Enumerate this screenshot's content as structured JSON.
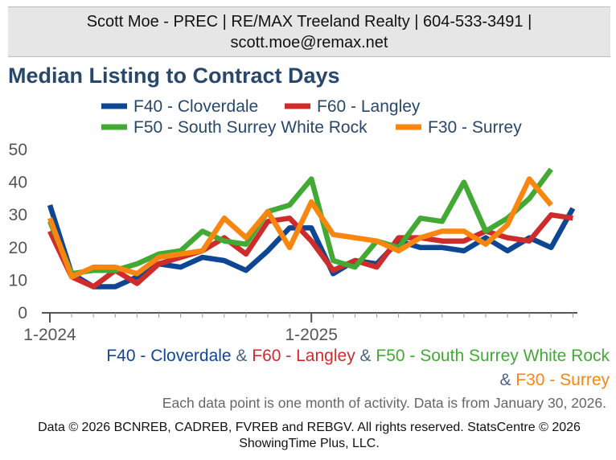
{
  "header": {
    "contact": "Scott Moe - PREC | RE/MAX Treeland Realty | 604-533-3491 | scott.moe@remax.net"
  },
  "chart_data": {
    "type": "line",
    "title": "Median Listing to Contract Days",
    "x_tick_labels": [
      "1-2024",
      "1-2025"
    ],
    "x_tick_positions": [
      0,
      12
    ],
    "ylim": [
      0,
      50
    ],
    "yticks": [
      0,
      10,
      20,
      30,
      40,
      50
    ],
    "grid": false,
    "legend_position": "top",
    "x": [
      0,
      1,
      2,
      3,
      4,
      5,
      6,
      7,
      8,
      9,
      10,
      11,
      12,
      13,
      14,
      15,
      16,
      17,
      18,
      19,
      20,
      21,
      22,
      23,
      24
    ],
    "series": [
      {
        "name": "F40 - Cloverdale",
        "color": "#0d4794",
        "values": [
          33,
          12,
          8,
          8,
          11,
          15,
          14,
          17,
          16,
          13,
          19,
          26,
          26,
          12,
          16,
          15,
          22,
          20,
          20,
          19,
          23,
          19,
          23,
          20,
          32
        ]
      },
      {
        "name": "F60 - Langley",
        "color": "#cf2b2b",
        "values": [
          25,
          11,
          8,
          13,
          9,
          15,
          17,
          19,
          23,
          18,
          28,
          29,
          22,
          13,
          16,
          14,
          23,
          23,
          22,
          22,
          25,
          23,
          22,
          30,
          29
        ]
      },
      {
        "name": "F50 - South Surrey White Rock",
        "color": "#43a935",
        "values": [
          28,
          12,
          13,
          13,
          15,
          18,
          19,
          25,
          22,
          21,
          31,
          33,
          41,
          16,
          14,
          22,
          20,
          29,
          28,
          40,
          25,
          29,
          35,
          44,
          null
        ]
      },
      {
        "name": "F30 - Surrey",
        "color": "#fb860f",
        "values": [
          29,
          11,
          14,
          14,
          12,
          17,
          18,
          19,
          29,
          23,
          31,
          20,
          34,
          24,
          23,
          22,
          19,
          23,
          25,
          25,
          21,
          27,
          41,
          33,
          null
        ]
      }
    ]
  },
  "footer": {
    "s1": "F40 - Cloverdale",
    "amp1": " & ",
    "s2": "F60 - Langley",
    "amp2": " & ",
    "s3": "F50 - South Surrey White Rock",
    "amp3": " & ",
    "s4": "F30 - Surrey",
    "note": "Each data point is one month of activity. Data is from January 30, 2026.",
    "copyright": "Data © 2026 BCNREB, CADREB, FVREB and REBGV. All rights reserved. StatsCentre © 2026 ShowingTime Plus, LLC."
  }
}
